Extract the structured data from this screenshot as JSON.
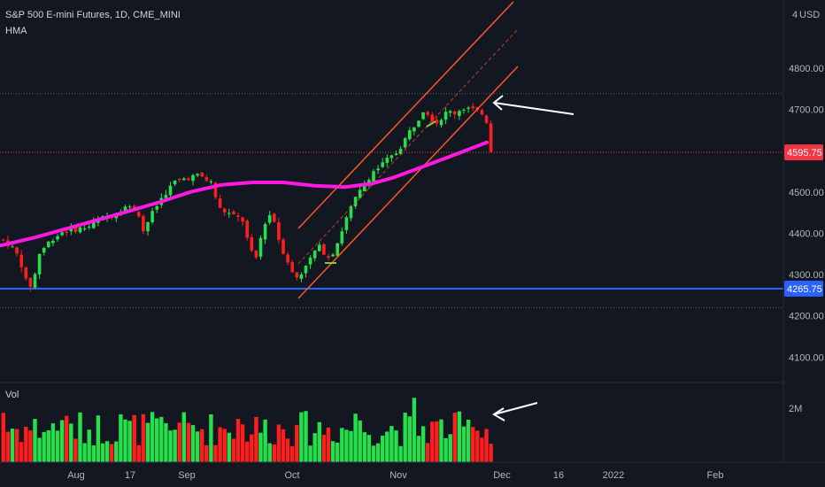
{
  "header": {
    "symbol": "S&P 500 E-mini Futures, 1D, CME_MINI",
    "indicator": "HMA",
    "currency": "USD",
    "volume_label": "Vol"
  },
  "colors": {
    "background": "#131722",
    "up": "#26e04b",
    "down": "#ff1e1e",
    "hma": "#ff18e0",
    "support": "#2962ff",
    "channel": "#ff5722",
    "price_tag": "#f23645",
    "annotation": "#ffffff"
  },
  "chart_data": [
    {
      "type": "candlestick",
      "title": "S&P 500 E-mini Futures, 1D, CME_MINI",
      "y_axis": {
        "ticks": [
          4100,
          4200,
          4300,
          4400,
          4500,
          4600,
          4700,
          4800
        ],
        "tick_labels": [
          "4100.00",
          "4200.00",
          "4300.00",
          "4400.00",
          "4500.00",
          "",
          "4700.00",
          "4800.00"
        ],
        "ylim": [
          4050,
          4880
        ]
      },
      "x_axis": {
        "tick_labels": [
          "Aug",
          "17",
          "Sep",
          "Oct",
          "Nov",
          "Dec",
          "16",
          "2022",
          "Feb"
        ]
      },
      "horizontal_lines": [
        {
          "value": 4265.75,
          "label": "4265.75",
          "style": "solid-blue"
        },
        {
          "value": 4595.75,
          "label": "4595.75",
          "style": "dotted-red"
        },
        {
          "value": 4738,
          "style": "dotted-gray"
        },
        {
          "value": 4220,
          "style": "dotted-gray"
        }
      ],
      "last_price": 4595.75,
      "indicator": "HMA",
      "grid": false
    },
    {
      "type": "bar",
      "title": "Vol",
      "y_axis": {
        "tick_labels": [
          "2M"
        ]
      },
      "grid": false
    }
  ]
}
